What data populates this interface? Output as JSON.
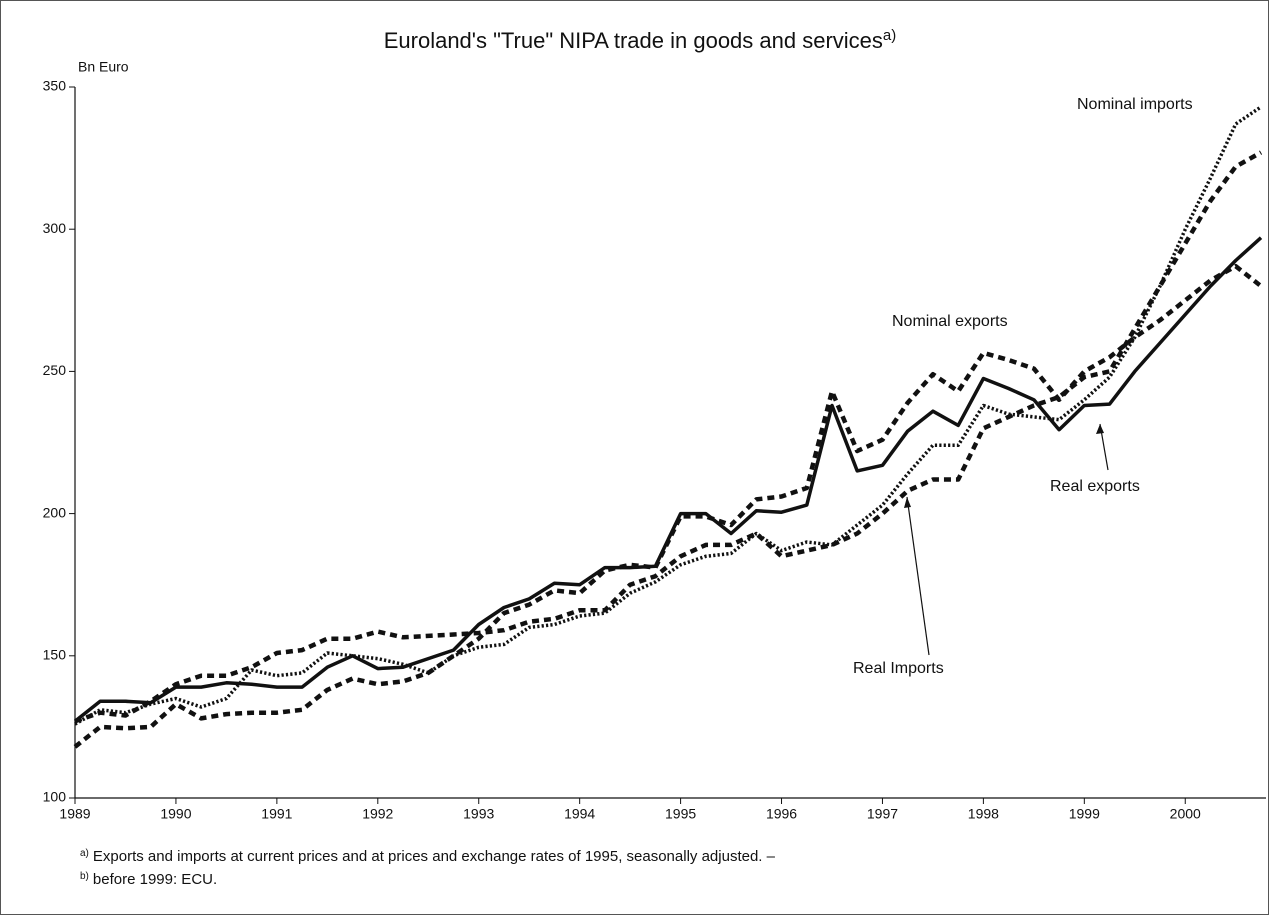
{
  "chart_data": {
    "type": "line",
    "title": "Euroland's \"True\" NIPA trade in goods and services",
    "title_note": "a)",
    "y_axis_label": "Bn Euro",
    "footnotes": [
      {
        "marker": "a)",
        "text": "Exports and imports at current prices and at prices and exchange rates of 1995, seasonally adjusted. –"
      },
      {
        "marker": "b)",
        "text": "before 1999: ECU."
      }
    ],
    "x": [
      1989,
      1989.25,
      1989.5,
      1989.75,
      1990,
      1990.25,
      1990.5,
      1990.75,
      1991,
      1991.25,
      1991.5,
      1991.75,
      1992,
      1992.25,
      1992.5,
      1992.75,
      1993,
      1993.25,
      1993.5,
      1993.75,
      1994,
      1994.25,
      1994.5,
      1994.75,
      1995,
      1995.25,
      1995.5,
      1995.75,
      1996,
      1996.25,
      1996.5,
      1996.75,
      1997,
      1997.25,
      1997.5,
      1997.75,
      1998,
      1998.25,
      1998.5,
      1998.75,
      1999,
      1999.25,
      1999.5,
      1999.75,
      2000,
      2000.25,
      2000.5,
      2000.75
    ],
    "series": [
      {
        "name": "Real exports",
        "color": "#111111",
        "style": "solid",
        "values": [
          127,
          134,
          134,
          133.5,
          139,
          139,
          140.5,
          140,
          139,
          139,
          146,
          150,
          145.5,
          146,
          149,
          152,
          161,
          167,
          170,
          175.5,
          175,
          181,
          181,
          181.5,
          200,
          200,
          193,
          201,
          200.5,
          203,
          238,
          215,
          217,
          229,
          236,
          231,
          247.5,
          244,
          240,
          229.5,
          238,
          238.5,
          250,
          260,
          270,
          280,
          289,
          297
        ]
      },
      {
        "name": "Nominal exports",
        "color": "#111111",
        "style": "dashed",
        "values": [
          118,
          125,
          124.5,
          125,
          133,
          128,
          129.5,
          130,
          130,
          131,
          138,
          142,
          140,
          141,
          144,
          150,
          156,
          165,
          168,
          173,
          172,
          180,
          182,
          181,
          199,
          199,
          196,
          205,
          206,
          209,
          243,
          222,
          226,
          239,
          249,
          243,
          256.5,
          254,
          251,
          240,
          250,
          255,
          262,
          268,
          275,
          282,
          287,
          280
        ]
      },
      {
        "name": "Nominal imports",
        "color": "#111111",
        "style": "dotted",
        "values": [
          126,
          131,
          130,
          133,
          135,
          132,
          135,
          145,
          143,
          144,
          151,
          150,
          149,
          147,
          144,
          150,
          153,
          154,
          160,
          161,
          164,
          165,
          172,
          176,
          182,
          185,
          186,
          193,
          187,
          190,
          189,
          196,
          203,
          214,
          224,
          224,
          238,
          235,
          234,
          233,
          240,
          248,
          262,
          280,
          300,
          318,
          337,
          343
        ]
      },
      {
        "name": "Real Imports",
        "color": "#111111",
        "style": "dashed",
        "values": [
          127,
          130,
          129,
          134,
          140,
          143,
          143,
          146,
          151,
          152,
          156,
          156,
          158.5,
          156.5,
          157,
          157.5,
          158,
          159,
          162,
          163,
          166,
          166,
          175,
          178,
          185,
          189,
          189,
          193,
          185,
          187,
          189,
          193,
          200,
          208,
          212,
          212,
          230,
          234,
          238,
          241,
          248,
          250,
          265,
          280,
          295,
          310,
          322,
          327
        ]
      }
    ],
    "xlim": [
      1989,
      2000.8
    ],
    "xticks": [
      1989,
      1990,
      1991,
      1992,
      1993,
      1994,
      1995,
      1996,
      1997,
      1998,
      1999,
      2000
    ],
    "ylim": [
      100,
      350
    ],
    "yticks": [
      100,
      150,
      200,
      250,
      300,
      350
    ],
    "grid": false
  }
}
